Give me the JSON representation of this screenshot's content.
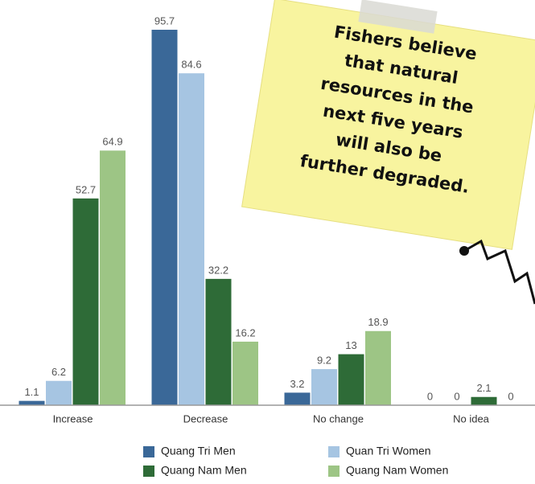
{
  "chart_data": {
    "type": "bar",
    "categories": [
      "Increase",
      "Decrease",
      "No change",
      "No idea"
    ],
    "series": [
      {
        "name": "Quang Tri Men",
        "color": "#3a6898",
        "values": [
          1.1,
          95.7,
          3.2,
          0
        ]
      },
      {
        "name": "Quan Tri Women",
        "color": "#a6c5e2",
        "values": [
          6.2,
          84.6,
          9.2,
          0
        ]
      },
      {
        "name": "Quang Nam Men",
        "color": "#2e6b37",
        "values": [
          52.7,
          32.2,
          13,
          2.1
        ]
      },
      {
        "name": "Quang Nam Women",
        "color": "#9dc585",
        "values": [
          64.9,
          16.2,
          18.9,
          0
        ]
      }
    ],
    "annotation": [
      "Fishers believe",
      "that natural",
      "resources in the",
      "next five years",
      "will also be",
      "further degraded."
    ]
  }
}
